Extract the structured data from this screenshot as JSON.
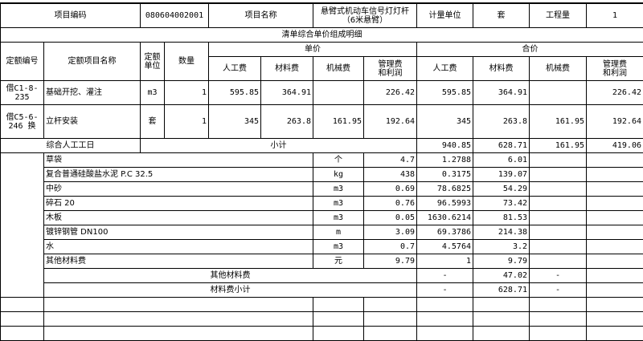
{
  "header": {
    "code_label": "项目编码",
    "code": "080604002001",
    "name_label": "项目名称",
    "name_line1": "悬臂式机动车信号灯灯杆",
    "name_line2": "（6米悬臂）",
    "unit_label": "计量单位",
    "unit": "套",
    "qty_label": "工程量",
    "qty": "1"
  },
  "section_title": "清单综合单价组成明细",
  "columns": {
    "quota_no": "定额编号",
    "quota_name": "定额项目名称",
    "quota_unit_1": "定额",
    "quota_unit_2": "单位",
    "quantity": "数量",
    "unit_price": "单价",
    "total_price": "合价",
    "labor": "人工费",
    "material": "材料费",
    "machine": "机械费",
    "mgmt_1": "管理费",
    "mgmt_2": "和利润"
  },
  "quotas": [
    {
      "no_1": "借C1-8-",
      "no_2": "235",
      "name": "基础开挖、灌注",
      "unit": "m3",
      "qty": "1",
      "u_labor": "595.85",
      "u_material": "364.91",
      "u_machine": "",
      "u_mgmt": "226.42",
      "t_labor": "595.85",
      "t_material": "364.91",
      "t_machine": "",
      "t_mgmt": "226.42"
    },
    {
      "no_1": "借C5-6-",
      "no_2": "246 换",
      "name": "立杆安装",
      "unit": "套",
      "qty": "1",
      "u_labor": "345",
      "u_material": "263.8",
      "u_machine": "161.95",
      "u_mgmt": "192.64",
      "t_labor": "345",
      "t_material": "263.8",
      "t_machine": "161.95",
      "t_mgmt": "192.64"
    }
  ],
  "subtotal": {
    "labor_day_label": "综合人工工日",
    "label": "小计",
    "labor": "940.85",
    "material": "628.71",
    "machine": "161.95",
    "mgmt": "419.06"
  },
  "materials": [
    {
      "name": "草袋",
      "unit": "个",
      "qty": "4.7",
      "price": "1.2788",
      "total": "6.01"
    },
    {
      "name": "复合普通硅酸盐水泥 P.C 32.5",
      "unit": "kg",
      "qty": "438",
      "price": "0.3175",
      "total": "139.07"
    },
    {
      "name": "中砂",
      "unit": "m3",
      "qty": "0.69",
      "price": "78.6825",
      "total": "54.29"
    },
    {
      "name": "碎石 20",
      "unit": "m3",
      "qty": "0.76",
      "price": "96.5993",
      "total": "73.42"
    },
    {
      "name": "木板",
      "unit": "m3",
      "qty": "0.05",
      "price": "1630.6214",
      "total": "81.53"
    },
    {
      "name": "镀锌钢管 DN100",
      "unit": "m",
      "qty": "3.09",
      "price": "69.3786",
      "total": "214.38"
    },
    {
      "name": "水",
      "unit": "m3",
      "qty": "0.7",
      "price": "4.5764",
      "total": "3.2"
    },
    {
      "name": "其他材料费",
      "unit": "元",
      "qty": "9.79",
      "price": "1",
      "total": "9.79"
    }
  ],
  "material_summary": [
    {
      "label": "其他材料费",
      "price": "-",
      "total": "47.02",
      "extra": "-"
    },
    {
      "label": "材料费小计",
      "price": "-",
      "total": "628.71",
      "extra": "-"
    }
  ]
}
